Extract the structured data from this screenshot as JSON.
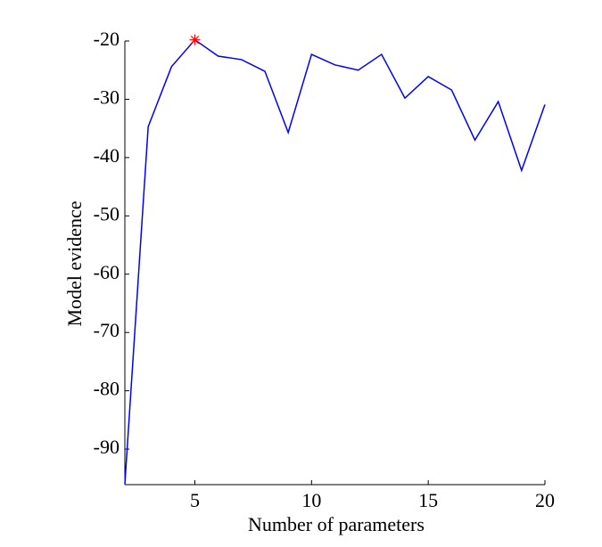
{
  "chart_data": {
    "type": "line",
    "xlabel": "Number of parameters",
    "ylabel": "Model evidence",
    "x": [
      2,
      3,
      4,
      5,
      6,
      7,
      8,
      9,
      10,
      11,
      12,
      13,
      14,
      15,
      16,
      17,
      18,
      19,
      20
    ],
    "series": [
      {
        "color": "#0000ff",
        "values": [
          -96,
          -34.7,
          -24.4,
          -19.8,
          -22.6,
          -23.2,
          -25.2,
          -35.7,
          -22.3,
          -24.1,
          -25.0,
          -22.3,
          -29.8,
          -26.1,
          -28.4,
          -37.0,
          -30.4,
          -42.2,
          -30.9
        ]
      }
    ],
    "highlight": {
      "x": 5,
      "y": -19.8,
      "color": "#ff0000"
    },
    "xlim": [
      2,
      20
    ],
    "xticks": [
      5,
      10,
      15,
      20
    ],
    "ylim": [
      -96.1,
      -20
    ],
    "yticks": [
      -90,
      -80,
      -70,
      -60,
      -50,
      -40,
      -30,
      -20
    ]
  }
}
